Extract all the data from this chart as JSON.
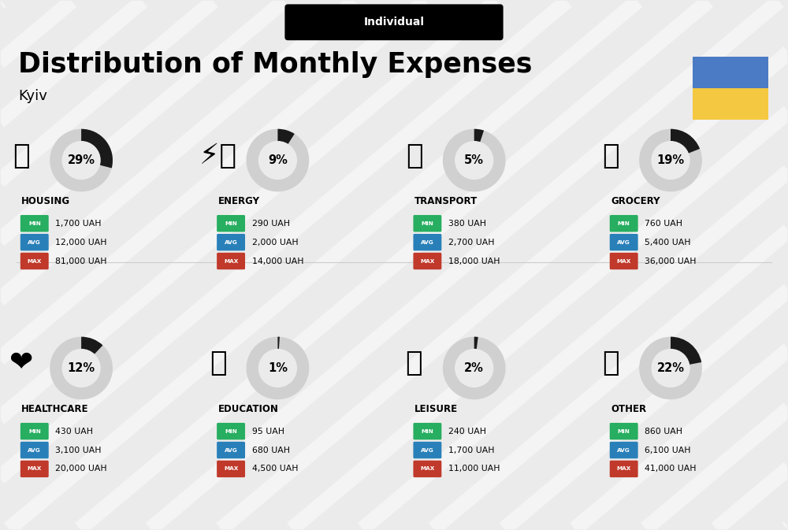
{
  "title": "Distribution of Monthly Expenses",
  "subtitle": "Kyiv",
  "tag": "Individual",
  "bg_color": "#ebebeb",
  "ukraine_blue": "#4b7bc4",
  "ukraine_yellow": "#f5c842",
  "categories": [
    {
      "name": "HOUSING",
      "percent": 29,
      "min": "1,700 UAH",
      "avg": "12,000 UAH",
      "max": "81,000 UAH",
      "row": 0,
      "col": 0
    },
    {
      "name": "ENERGY",
      "percent": 9,
      "min": "290 UAH",
      "avg": "2,000 UAH",
      "max": "14,000 UAH",
      "row": 0,
      "col": 1
    },
    {
      "name": "TRANSPORT",
      "percent": 5,
      "min": "380 UAH",
      "avg": "2,700 UAH",
      "max": "18,000 UAH",
      "row": 0,
      "col": 2
    },
    {
      "name": "GROCERY",
      "percent": 19,
      "min": "760 UAH",
      "avg": "5,400 UAH",
      "max": "36,000 UAH",
      "row": 0,
      "col": 3
    },
    {
      "name": "HEALTHCARE",
      "percent": 12,
      "min": "430 UAH",
      "avg": "3,100 UAH",
      "max": "20,000 UAH",
      "row": 1,
      "col": 0
    },
    {
      "name": "EDUCATION",
      "percent": 1,
      "min": "95 UAH",
      "avg": "680 UAH",
      "max": "4,500 UAH",
      "row": 1,
      "col": 1
    },
    {
      "name": "LEISURE",
      "percent": 2,
      "min": "240 UAH",
      "avg": "1,700 UAH",
      "max": "11,000 UAH",
      "row": 1,
      "col": 2
    },
    {
      "name": "OTHER",
      "percent": 22,
      "min": "860 UAH",
      "avg": "6,100 UAH",
      "max": "41,000 UAH",
      "row": 1,
      "col": 3
    }
  ],
  "min_color": "#27ae60",
  "avg_color": "#2980b9",
  "max_color": "#c0392b",
  "circle_bg": "#d0d0d0",
  "circle_arc": "#1a1a1a"
}
